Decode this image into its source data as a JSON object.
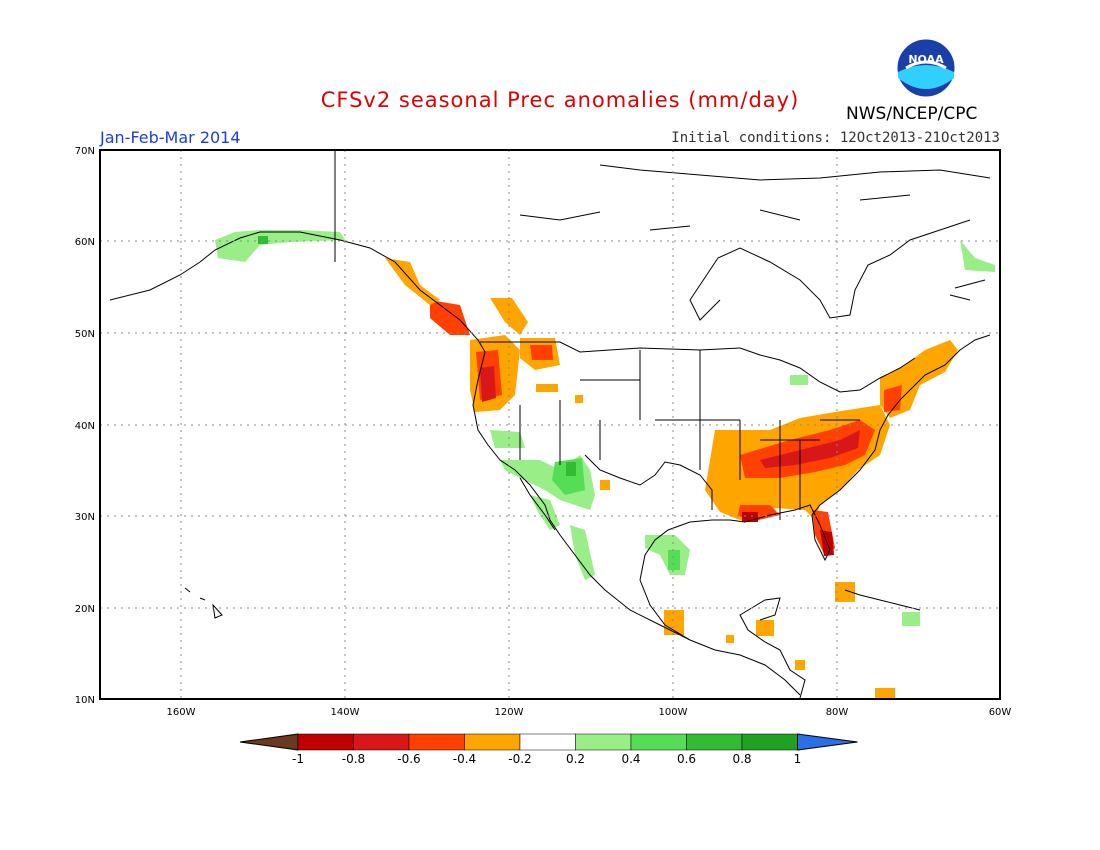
{
  "title": "CFSv2 seasonal Prec anomalies (mm/day)",
  "season": "Jan-Feb-Mar 2014",
  "initial_conditions": "Initial conditions: 12Oct2013-21Oct2013",
  "agency": "NWS/NCEP/CPC",
  "logo_text": "NOAA",
  "lat_labels": [
    "70N",
    "60N",
    "50N",
    "40N",
    "30N",
    "20N",
    "10N"
  ],
  "lon_labels": [
    "160W",
    "140W",
    "120W",
    "100W",
    "80W",
    "60W"
  ],
  "colorbar": {
    "ticks": [
      "-1",
      "-0.8",
      "-0.6",
      "-0.4",
      "-0.2",
      "0.2",
      "0.4",
      "0.6",
      "0.8",
      "1"
    ],
    "colors": [
      "#6b3a1e",
      "#c00000",
      "#d81818",
      "#ff4000",
      "#ffa500",
      "#ffffff",
      "#99ee88",
      "#55dd55",
      "#33bb33",
      "#22a022",
      "#2b6fe6"
    ]
  },
  "anomaly_regions": [
    {
      "name": "southeast-us",
      "level": "-0.4"
    },
    {
      "name": "tennessee-valley",
      "level": "-0.6"
    },
    {
      "name": "pacific-northwest",
      "level": "-0.6"
    },
    {
      "name": "new-england",
      "level": "-0.4"
    },
    {
      "name": "southwest-us",
      "level": "0.4"
    },
    {
      "name": "south-texas",
      "level": "0.4"
    },
    {
      "name": "southern-alaska",
      "level": "0.2"
    },
    {
      "name": "florida-peninsula",
      "level": "-0.8"
    }
  ]
}
